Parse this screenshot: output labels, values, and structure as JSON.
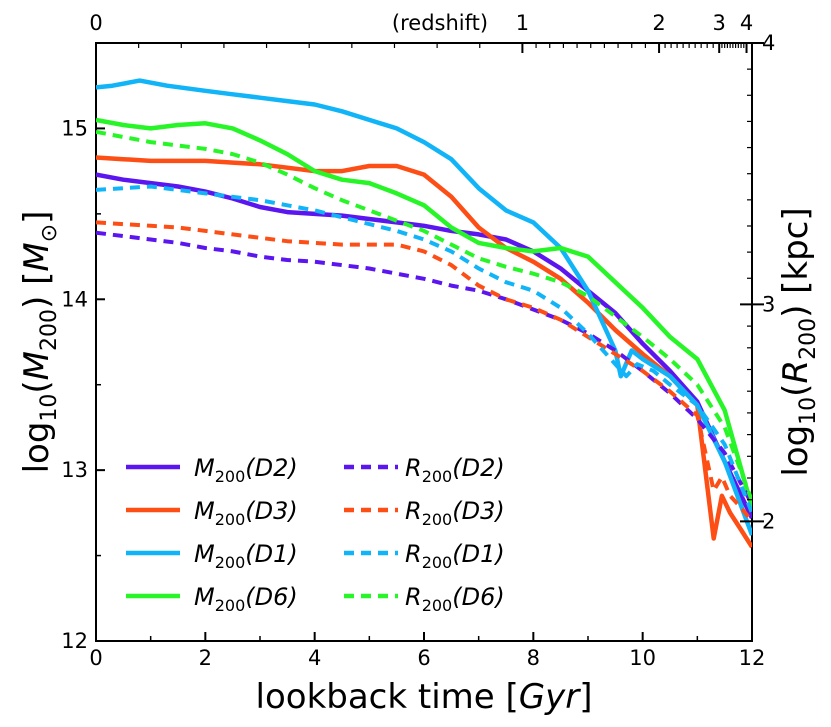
{
  "chart_data": {
    "type": "line",
    "xlabel": "lookback time [Gyr]",
    "ylabel_left": "log10(M200) [M☉]",
    "ylabel_right": "log10(R200) [kpc]",
    "top_axis_label": "(redshift)",
    "xlim": [
      0,
      12
    ],
    "ylim_left": [
      12,
      15.5
    ],
    "ylim_right_approx": [
      1.55,
      4.0
    ],
    "x_ticks": [
      0,
      2,
      4,
      6,
      8,
      10,
      12
    ],
    "y_left_ticks": [
      12,
      13,
      14,
      15
    ],
    "y_right_ticks": [
      2,
      3,
      4
    ],
    "y_right_tick_positions_left_units": [
      12.7,
      13.97,
      15.5
    ],
    "redshift_ticks": [
      {
        "label": "0",
        "x": 0.0
      },
      {
        "label": "1",
        "x": 7.8
      },
      {
        "label": "2",
        "x": 10.3
      },
      {
        "label": "3",
        "x": 11.4
      },
      {
        "label": "4",
        "x": 11.9
      }
    ],
    "series": [
      {
        "name": "M200(D2)",
        "legend": {
          "main": "M",
          "sub": "200",
          "rest": "(D2)"
        },
        "color": "#5b16f0",
        "dash": false,
        "x": [
          0,
          0.5,
          1,
          1.5,
          2,
          2.5,
          3,
          3.5,
          4,
          4.5,
          5,
          5.5,
          6,
          6.5,
          7,
          7.5,
          8,
          8.5,
          9,
          9.5,
          10,
          10.5,
          11,
          11.5,
          12
        ],
        "y": [
          14.73,
          14.7,
          14.68,
          14.66,
          14.63,
          14.59,
          14.54,
          14.51,
          14.5,
          14.49,
          14.47,
          14.45,
          14.43,
          14.4,
          14.38,
          14.35,
          14.28,
          14.18,
          14.05,
          13.92,
          13.74,
          13.58,
          13.4,
          13.05,
          12.72
        ]
      },
      {
        "name": "M200(D3)",
        "legend": {
          "main": "M",
          "sub": "200",
          "rest": "(D3)"
        },
        "color": "#fd4e16",
        "dash": false,
        "x": [
          0,
          0.5,
          1,
          1.5,
          2,
          2.5,
          3,
          3.5,
          4,
          4.5,
          5,
          5.5,
          6,
          6.5,
          7,
          7.5,
          8,
          8.5,
          9,
          9.5,
          10,
          10.5,
          11,
          11.3,
          11.45,
          11.6,
          11.8,
          12
        ],
        "y": [
          14.83,
          14.82,
          14.81,
          14.81,
          14.81,
          14.8,
          14.79,
          14.77,
          14.75,
          14.75,
          14.78,
          14.78,
          14.73,
          14.6,
          14.42,
          14.3,
          14.22,
          14.12,
          13.98,
          13.82,
          13.68,
          13.55,
          13.38,
          12.6,
          12.85,
          12.75,
          12.65,
          12.55
        ]
      },
      {
        "name": "M200(D1)",
        "legend": {
          "main": "M",
          "sub": "200",
          "rest": "(D1)"
        },
        "color": "#12b4f8",
        "dash": false,
        "x": [
          0,
          0.3,
          0.8,
          1.3,
          2,
          2.5,
          3,
          3.5,
          4,
          4.5,
          5,
          5.5,
          6,
          6.5,
          7,
          7.5,
          8,
          8.5,
          9,
          9.5,
          9.6,
          9.8,
          10,
          10.5,
          11,
          11.5,
          12
        ],
        "y": [
          15.24,
          15.25,
          15.28,
          15.25,
          15.22,
          15.2,
          15.18,
          15.16,
          15.14,
          15.1,
          15.05,
          15.0,
          14.92,
          14.82,
          14.65,
          14.52,
          14.45,
          14.3,
          14.05,
          13.7,
          13.55,
          13.7,
          13.65,
          13.55,
          13.38,
          13.05,
          12.62
        ]
      },
      {
        "name": "M200(D6)",
        "legend": {
          "main": "M",
          "sub": "200",
          "rest": "(D6)"
        },
        "color": "#27f527",
        "dash": false,
        "x": [
          0,
          0.5,
          1,
          1.5,
          2,
          2.5,
          3,
          3.5,
          4,
          4.5,
          5,
          5.5,
          6,
          6.5,
          7,
          7.5,
          8,
          8.5,
          9,
          9.5,
          10,
          10.5,
          11,
          11.5,
          12
        ],
        "y": [
          15.05,
          15.02,
          15.0,
          15.02,
          15.03,
          15.0,
          14.93,
          14.85,
          14.75,
          14.7,
          14.68,
          14.62,
          14.55,
          14.42,
          14.33,
          14.3,
          14.28,
          14.3,
          14.25,
          14.1,
          13.95,
          13.78,
          13.65,
          13.35,
          12.78
        ]
      },
      {
        "name": "R200(D2)",
        "legend": {
          "main": "R",
          "sub": "200",
          "rest": "(D2)"
        },
        "color": "#5b16f0",
        "dash": true,
        "x": [
          0,
          0.5,
          1,
          1.5,
          2,
          2.5,
          3,
          3.5,
          4,
          4.5,
          5,
          5.5,
          6,
          6.5,
          7,
          7.5,
          8,
          8.5,
          9,
          9.5,
          10,
          10.5,
          11,
          11.5,
          12
        ],
        "y": [
          14.39,
          14.37,
          14.35,
          14.33,
          14.3,
          14.28,
          14.25,
          14.23,
          14.22,
          14.2,
          14.18,
          14.15,
          14.12,
          14.08,
          14.05,
          14.0,
          13.94,
          13.88,
          13.8,
          13.7,
          13.58,
          13.45,
          13.3,
          13.1,
          12.8
        ]
      },
      {
        "name": "R200(D3)",
        "legend": {
          "main": "R",
          "sub": "200",
          "rest": "(D3)"
        },
        "color": "#fd4e16",
        "dash": true,
        "x": [
          0,
          0.5,
          1,
          1.5,
          2,
          2.5,
          3,
          3.5,
          4,
          4.5,
          5,
          5.5,
          6,
          6.5,
          7,
          7.5,
          8,
          8.5,
          9,
          9.5,
          10,
          10.5,
          11,
          11.3,
          11.45,
          11.6,
          11.8,
          12
        ],
        "y": [
          14.45,
          14.44,
          14.43,
          14.42,
          14.4,
          14.38,
          14.36,
          14.34,
          14.33,
          14.32,
          14.32,
          14.32,
          14.28,
          14.2,
          14.08,
          14.0,
          13.95,
          13.88,
          13.78,
          13.68,
          13.58,
          13.46,
          13.32,
          12.88,
          12.96,
          12.85,
          12.78,
          12.7
        ]
      },
      {
        "name": "R200(D1)",
        "legend": {
          "main": "R",
          "sub": "200",
          "rest": "(D1)"
        },
        "color": "#12b4f8",
        "dash": true,
        "x": [
          0,
          0.5,
          1,
          1.5,
          2,
          2.5,
          3,
          3.5,
          4,
          4.5,
          5,
          5.5,
          6,
          6.5,
          7,
          7.5,
          8,
          8.5,
          9,
          9.5,
          9.7,
          9.9,
          10.2,
          10.5,
          11,
          11.5,
          12
        ],
        "y": [
          14.64,
          14.65,
          14.66,
          14.64,
          14.62,
          14.6,
          14.58,
          14.55,
          14.52,
          14.48,
          14.44,
          14.4,
          14.35,
          14.28,
          14.18,
          14.1,
          14.05,
          13.95,
          13.8,
          13.62,
          13.55,
          13.62,
          13.58,
          13.5,
          13.38,
          13.15,
          12.75
        ]
      },
      {
        "name": "R200(D6)",
        "legend": {
          "main": "R",
          "sub": "200",
          "rest": "(D6)"
        },
        "color": "#27f527",
        "dash": true,
        "x": [
          0,
          0.5,
          1,
          1.5,
          2,
          2.5,
          3,
          3.5,
          4,
          4.5,
          5,
          5.5,
          6,
          6.5,
          7,
          7.5,
          8,
          8.5,
          9,
          9.5,
          10,
          10.5,
          11,
          11.5,
          12
        ],
        "y": [
          14.98,
          14.95,
          14.92,
          14.9,
          14.88,
          14.85,
          14.8,
          14.73,
          14.65,
          14.58,
          14.52,
          14.46,
          14.4,
          14.32,
          14.24,
          14.19,
          14.15,
          14.1,
          14.02,
          13.9,
          13.78,
          13.65,
          13.5,
          13.25,
          12.82
        ]
      }
    ],
    "legend_location": "lower-left",
    "legend_columns": 2,
    "grid": false
  }
}
